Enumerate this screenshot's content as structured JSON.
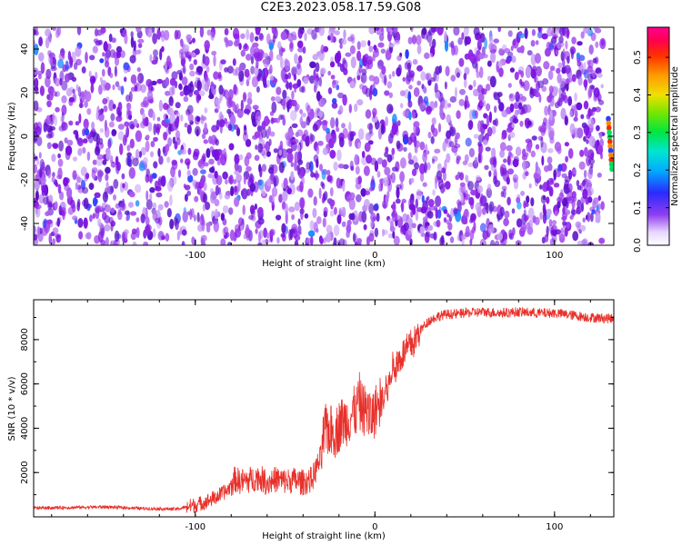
{
  "page": {
    "title": "C2E3.2023.058.17.59.G08"
  },
  "colors": {
    "spectrogram_background": "#ffffff",
    "spectrogram_main": "#8a1ee6",
    "snr_line": "#e8302a",
    "axis": "#000000"
  },
  "chart_data": [
    {
      "type": "heatmap",
      "title": "",
      "xlabel": "Height of straight line (km)",
      "ylabel": "Frequency (Hz)",
      "xlim": [
        -190,
        133
      ],
      "ylim": [
        -50,
        50
      ],
      "x_ticks": [
        -100,
        0,
        100
      ],
      "x_tick_labels": [
        "-100",
        "0",
        "100"
      ],
      "y_ticks": [
        -40,
        -20,
        0,
        20,
        40
      ],
      "y_tick_labels": [
        "-40",
        "-20",
        "0",
        "20",
        "40"
      ],
      "colorbar": {
        "label": "Normalized spectral amplitude",
        "range": [
          0,
          0.58
        ],
        "ticks": [
          0.0,
          0.1,
          0.2,
          0.3,
          0.4,
          0.5
        ],
        "tick_labels": [
          "0.0",
          "0.1",
          "0.2",
          "0.3",
          "0.4",
          "0.5"
        ],
        "colormap": "hsv-reversed (white, violet, blue, cyan, green, yellow, orange, red, magenta)"
      },
      "features": [
        {
          "description": "broadband noise, mostly violet/purple with white gaps",
          "x_range": [
            -190,
            127
          ]
        },
        {
          "description": "bright feature (green/yellow/red) near zero frequency",
          "x": 131,
          "y_range": [
            -15,
            8
          ]
        }
      ],
      "grid": false
    },
    {
      "type": "line",
      "title": "",
      "xlabel": "Height of straight line (km)",
      "ylabel": "SNR (10 * v/v)",
      "xlim": [
        -190,
        133
      ],
      "ylim": [
        0,
        9800
      ],
      "x_ticks": [
        -100,
        0,
        100
      ],
      "x_tick_labels": [
        "-100",
        "0",
        "100"
      ],
      "y_ticks": [
        2000,
        4000,
        6000,
        8000
      ],
      "y_tick_labels": [
        "2000",
        "4000",
        "6000",
        "8000"
      ],
      "series": [
        {
          "color": "#e8302a",
          "x": [
            -190,
            -170,
            -150,
            -130,
            -110,
            -102,
            -95,
            -88,
            -82,
            -78,
            -75,
            -70,
            -65,
            -60,
            -55,
            -50,
            -45,
            -40,
            -35,
            -30,
            -28,
            -25,
            -22,
            -20,
            -18,
            -15,
            -12,
            -10,
            -8,
            -5,
            -2,
            0,
            3,
            5,
            8,
            10,
            12,
            15,
            18,
            20,
            22,
            25,
            30,
            35,
            40,
            45,
            50,
            60,
            70,
            80,
            90,
            100,
            110,
            120,
            133
          ],
          "y": [
            400,
            420,
            450,
            380,
            350,
            500,
            650,
            900,
            1200,
            1700,
            1600,
            1650,
            1800,
            1550,
            1700,
            1600,
            1650,
            1550,
            1700,
            2700,
            3900,
            3900,
            3800,
            4100,
            4300,
            4400,
            4700,
            4800,
            5000,
            4750,
            4500,
            4750,
            5300,
            5300,
            6000,
            6600,
            6850,
            7300,
            7550,
            7750,
            7900,
            8400,
            8850,
            9050,
            9150,
            9150,
            9200,
            9250,
            9200,
            9250,
            9200,
            9200,
            9100,
            9000,
            8950
          ]
        }
      ],
      "grid": false
    }
  ]
}
